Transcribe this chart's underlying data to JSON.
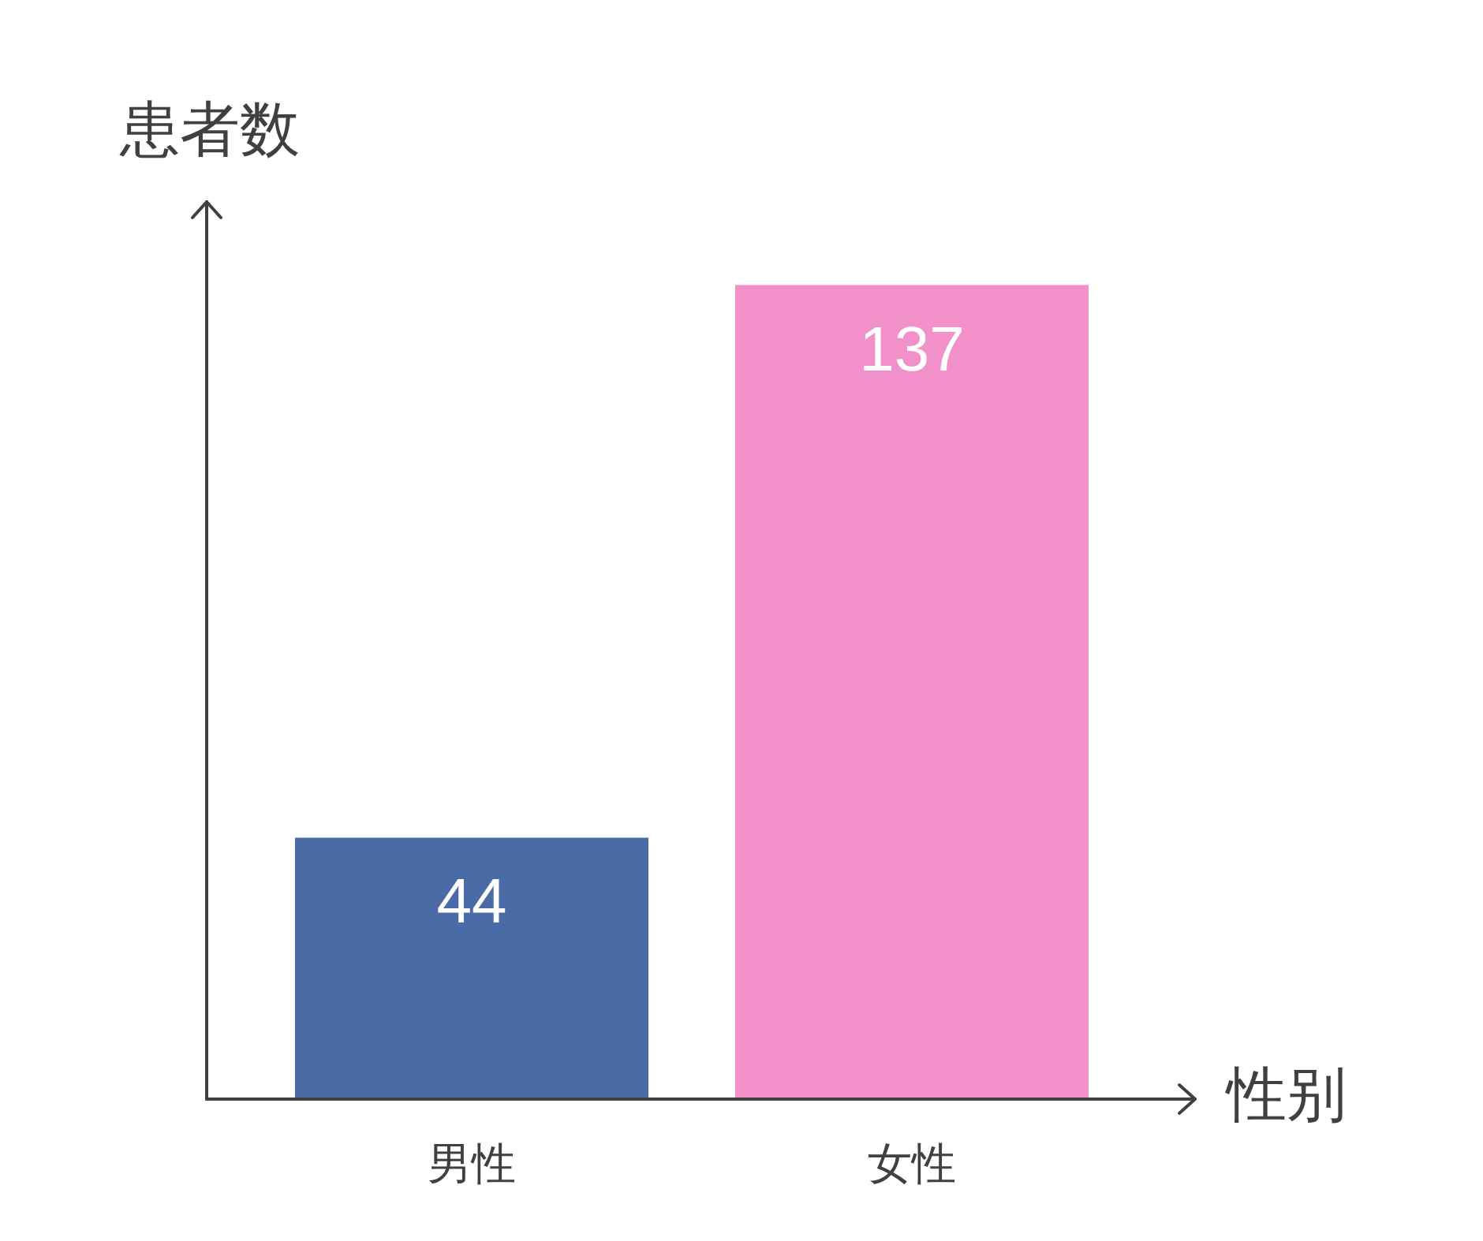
{
  "chart_data": {
    "type": "bar",
    "xlabel": "性别",
    "ylabel": "患者数",
    "categories": [
      "男性",
      "女性"
    ],
    "values": [
      44,
      137
    ],
    "colors": [
      "#4a6ba5",
      "#f291c9"
    ],
    "ylim": [
      0,
      151
    ],
    "data_labels": true
  }
}
